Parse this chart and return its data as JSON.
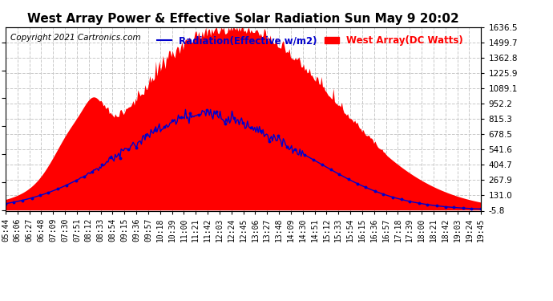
{
  "title": "West Array Power & Effective Solar Radiation Sun May 9 20:02",
  "copyright": "Copyright 2021 Cartronics.com",
  "legend_radiation": "Radiation(Effective w/m2)",
  "legend_west": "West Array(DC Watts)",
  "ylabel_right_ticks": [
    -5.8,
    131.0,
    267.9,
    404.7,
    541.6,
    678.5,
    815.3,
    952.2,
    1089.1,
    1225.9,
    1362.8,
    1499.7,
    1636.5
  ],
  "ylim": [
    -5.8,
    1636.5
  ],
  "x_labels": [
    "05:44",
    "06:06",
    "06:27",
    "06:48",
    "07:09",
    "07:30",
    "07:51",
    "08:12",
    "08:33",
    "08:54",
    "09:15",
    "09:36",
    "09:57",
    "10:18",
    "10:39",
    "11:00",
    "11:21",
    "11:42",
    "12:03",
    "12:24",
    "12:45",
    "13:06",
    "13:27",
    "13:48",
    "14:09",
    "14:30",
    "14:51",
    "15:12",
    "15:33",
    "15:54",
    "16:15",
    "16:36",
    "16:57",
    "17:18",
    "17:39",
    "18:00",
    "18:21",
    "18:42",
    "19:03",
    "19:24",
    "19:45"
  ],
  "title_color": "#000000",
  "radiation_color": "#0000cc",
  "west_array_color": "#ff0000",
  "background_color": "#ffffff",
  "grid_color": "#c8c8c8",
  "title_fontsize": 11,
  "axis_fontsize": 7,
  "copyright_fontsize": 7.5,
  "legend_fontsize": 8.5
}
